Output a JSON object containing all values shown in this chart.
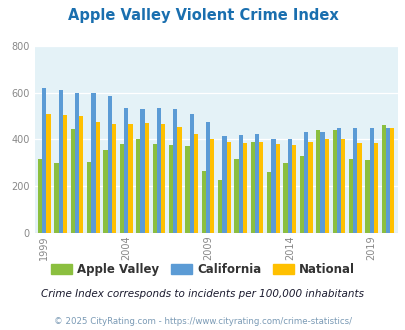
{
  "title": "Apple Valley Violent Crime Index",
  "title_color": "#1a6faf",
  "subtitle": "Crime Index corresponds to incidents per 100,000 inhabitants",
  "footer": "© 2025 CityRating.com - https://www.cityrating.com/crime-statistics/",
  "years": [
    1999,
    2000,
    2001,
    2002,
    2003,
    2004,
    2005,
    2006,
    2007,
    2008,
    2009,
    2010,
    2011,
    2012,
    2013,
    2014,
    2015,
    2016,
    2017,
    2018,
    2019,
    2020
  ],
  "apple_valley": [
    315,
    300,
    445,
    302,
    355,
    380,
    400,
    380,
    378,
    370,
    265,
    225,
    315,
    390,
    260,
    300,
    330,
    440,
    440,
    315,
    310,
    460
  ],
  "california": [
    620,
    612,
    600,
    598,
    585,
    535,
    530,
    535,
    530,
    510,
    475,
    415,
    420,
    425,
    400,
    400,
    430,
    430,
    450,
    450,
    450,
    450
  ],
  "national": [
    510,
    505,
    500,
    475,
    465,
    465,
    470,
    465,
    455,
    425,
    400,
    390,
    385,
    390,
    380,
    375,
    390,
    400,
    400,
    385,
    385,
    450
  ],
  "bar_colors": {
    "apple_valley": "#8BBF3F",
    "california": "#5B9BD5",
    "national": "#FFC000"
  },
  "ylim": [
    0,
    800
  ],
  "yticks": [
    0,
    200,
    400,
    600,
    800
  ],
  "plot_bg": "#E4F2F7",
  "fig_bg": "#FFFFFF",
  "legend_labels": [
    "Apple Valley",
    "California",
    "National"
  ],
  "subtitle_color": "#1a1a2e",
  "footer_color": "#7a9ab5"
}
